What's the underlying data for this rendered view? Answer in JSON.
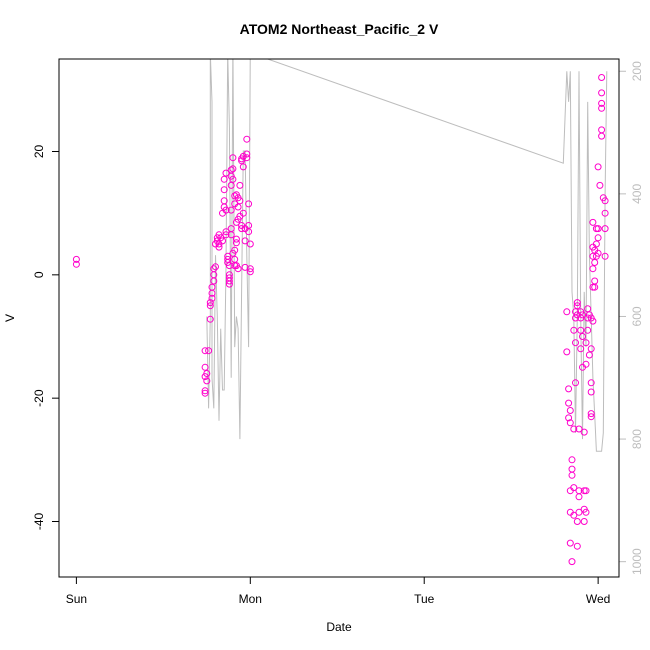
{
  "chart_data": {
    "type": "scatter",
    "title": "ATOM2 Northeast_Pacific_2 V",
    "xlabel": "Date",
    "ylabel": "V",
    "x_ticks": [
      "Sun",
      "Mon",
      "Tue",
      "Wed"
    ],
    "y_ticks": [
      -40,
      -20,
      0,
      20
    ],
    "y2_ticks": [
      200,
      400,
      600,
      800,
      1000
    ],
    "xlim_days": [
      -0.1,
      3.12
    ],
    "ylim": [
      -49,
      35
    ],
    "y2lim": [
      1025,
      180
    ],
    "grid": false,
    "legend": "none",
    "colors": {
      "points": "#ff00cc",
      "line": "#bdbdbd",
      "right_axis": "#bdbdbd",
      "frame": "#000000"
    },
    "series": [
      {
        "kind": "points",
        "axis": "left",
        "points": [
          [
            0.0,
            2.5
          ],
          [
            0.0,
            1.7
          ],
          [
            0.74,
            -12.3
          ],
          [
            0.74,
            -15.0
          ],
          [
            0.74,
            -16.5
          ],
          [
            0.74,
            -18.8
          ],
          [
            0.74,
            -19.2
          ],
          [
            0.75,
            -16.0
          ],
          [
            0.75,
            -17.2
          ],
          [
            0.76,
            -12.3
          ],
          [
            0.77,
            -7.2
          ],
          [
            0.77,
            -5.0
          ],
          [
            0.77,
            -4.5
          ],
          [
            0.78,
            -3.8
          ],
          [
            0.78,
            -3.0
          ],
          [
            0.78,
            -2.0
          ],
          [
            0.79,
            -1.0
          ],
          [
            0.79,
            0.0
          ],
          [
            0.79,
            1.0
          ],
          [
            0.8,
            1.3
          ],
          [
            0.8,
            5.0
          ],
          [
            0.81,
            6.0
          ],
          [
            0.81,
            5.5
          ],
          [
            0.82,
            5.0
          ],
          [
            0.82,
            4.5
          ],
          [
            0.82,
            6.5
          ],
          [
            0.83,
            6.0
          ],
          [
            0.84,
            5.5
          ],
          [
            0.84,
            10.0
          ],
          [
            0.85,
            11.0
          ],
          [
            0.85,
            12.0
          ],
          [
            0.85,
            13.8
          ],
          [
            0.85,
            15.5
          ],
          [
            0.86,
            16.5
          ],
          [
            0.86,
            10.5
          ],
          [
            0.86,
            7.0
          ],
          [
            0.86,
            6.5
          ],
          [
            0.87,
            3.0
          ],
          [
            0.87,
            2.5
          ],
          [
            0.87,
            2.0
          ],
          [
            0.88,
            1.5
          ],
          [
            0.88,
            0.0
          ],
          [
            0.88,
            -0.5
          ],
          [
            0.88,
            -1.0
          ],
          [
            0.88,
            -1.5
          ],
          [
            0.89,
            7.5
          ],
          [
            0.89,
            6.5
          ],
          [
            0.89,
            10.5
          ],
          [
            0.89,
            14.5
          ],
          [
            0.89,
            16.0
          ],
          [
            0.89,
            17.0
          ],
          [
            0.9,
            17.2
          ],
          [
            0.9,
            19.0
          ],
          [
            0.9,
            15.5
          ],
          [
            0.9,
            3.5
          ],
          [
            0.91,
            2.5
          ],
          [
            0.91,
            1.5
          ],
          [
            0.91,
            4.0
          ],
          [
            0.91,
            11.5
          ],
          [
            0.91,
            12.8
          ],
          [
            0.92,
            13.0
          ],
          [
            0.92,
            8.5
          ],
          [
            0.92,
            5.8
          ],
          [
            0.92,
            5.2
          ],
          [
            0.92,
            1.5
          ],
          [
            0.93,
            1.0
          ],
          [
            0.93,
            9.0
          ],
          [
            0.93,
            11.0
          ],
          [
            0.93,
            12.5
          ],
          [
            0.94,
            14.5
          ],
          [
            0.94,
            12.0
          ],
          [
            0.94,
            9.5
          ],
          [
            0.95,
            7.5
          ],
          [
            0.95,
            8.0
          ],
          [
            0.95,
            18.5
          ],
          [
            0.95,
            18.8
          ],
          [
            0.96,
            19.2
          ],
          [
            0.96,
            17.5
          ],
          [
            0.96,
            10.0
          ],
          [
            0.97,
            7.5
          ],
          [
            0.97,
            5.5
          ],
          [
            0.97,
            1.2
          ],
          [
            0.98,
            22.0
          ],
          [
            0.98,
            19.6
          ],
          [
            0.98,
            19.0
          ],
          [
            0.99,
            11.5
          ],
          [
            0.99,
            8.0
          ],
          [
            0.99,
            7.0
          ],
          [
            1.0,
            5.0
          ],
          [
            1.0,
            1.0
          ],
          [
            1.0,
            0.5
          ],
          [
            2.82,
            -6.0
          ],
          [
            2.82,
            -12.5
          ],
          [
            2.83,
            -18.5
          ],
          [
            2.83,
            -20.8
          ],
          [
            2.83,
            -23.2
          ],
          [
            2.84,
            -24.0
          ],
          [
            2.84,
            -22.0
          ],
          [
            2.85,
            -30.0
          ],
          [
            2.85,
            -31.5
          ],
          [
            2.85,
            -32.5
          ],
          [
            2.84,
            -35.0
          ],
          [
            2.84,
            -38.5
          ],
          [
            2.84,
            -43.5
          ],
          [
            2.85,
            -46.5
          ],
          [
            2.86,
            -39.0
          ],
          [
            2.86,
            -34.5
          ],
          [
            2.86,
            -25.0
          ],
          [
            2.87,
            -17.5
          ],
          [
            2.87,
            -11.0
          ],
          [
            2.86,
            -9.0
          ],
          [
            2.87,
            -7.0
          ],
          [
            2.87,
            -6.0
          ],
          [
            2.88,
            -5.0
          ],
          [
            2.88,
            -4.5
          ],
          [
            2.88,
            -6.5
          ],
          [
            2.88,
            -44.0
          ],
          [
            2.88,
            -40.0
          ],
          [
            2.89,
            -38.5
          ],
          [
            2.89,
            -36.0
          ],
          [
            2.89,
            -35.0
          ],
          [
            2.89,
            -25.0
          ],
          [
            2.9,
            -12.0
          ],
          [
            2.9,
            -9.0
          ],
          [
            2.9,
            -7.0
          ],
          [
            2.9,
            -6.0
          ],
          [
            2.91,
            -6.5
          ],
          [
            2.91,
            -10.0
          ],
          [
            2.91,
            -15.0
          ],
          [
            2.92,
            -25.5
          ],
          [
            2.92,
            -35.0
          ],
          [
            2.92,
            -38.0
          ],
          [
            2.92,
            -40.0
          ],
          [
            2.93,
            -38.5
          ],
          [
            2.93,
            -35.0
          ],
          [
            2.93,
            -14.5
          ],
          [
            2.93,
            -11.0
          ],
          [
            2.94,
            -9.0
          ],
          [
            2.94,
            -7.0
          ],
          [
            2.94,
            -5.5
          ],
          [
            2.95,
            -6.5
          ],
          [
            2.95,
            -13.0
          ],
          [
            2.96,
            -12.0
          ],
          [
            2.96,
            -7.0
          ],
          [
            2.96,
            -23.0
          ],
          [
            2.96,
            -22.5
          ],
          [
            2.96,
            -19.0
          ],
          [
            2.96,
            -17.5
          ],
          [
            2.97,
            -7.5
          ],
          [
            2.97,
            -2.0
          ],
          [
            2.97,
            1.0
          ],
          [
            2.97,
            3.0
          ],
          [
            2.97,
            4.5
          ],
          [
            2.97,
            8.5
          ],
          [
            2.98,
            4.0
          ],
          [
            2.98,
            2.0
          ],
          [
            2.98,
            -1.0
          ],
          [
            2.98,
            -2.0
          ],
          [
            2.99,
            3.0
          ],
          [
            2.99,
            7.5
          ],
          [
            2.99,
            5.0
          ],
          [
            3.0,
            3.5
          ],
          [
            3.0,
            6.0
          ],
          [
            3.0,
            7.5
          ],
          [
            3.0,
            17.5
          ],
          [
            3.01,
            14.5
          ],
          [
            3.02,
            32.0
          ],
          [
            3.02,
            29.5
          ],
          [
            3.02,
            27.8
          ],
          [
            3.02,
            27.0
          ],
          [
            3.02,
            23.5
          ],
          [
            3.02,
            22.5
          ],
          [
            3.03,
            12.5
          ],
          [
            3.04,
            12.0
          ],
          [
            3.04,
            10.0
          ],
          [
            3.04,
            7.5
          ],
          [
            3.04,
            3.0
          ]
        ]
      },
      {
        "kind": "line",
        "axis": "right",
        "points": [
          [
            0.75,
            600
          ],
          [
            0.76,
            750
          ],
          [
            0.77,
            600
          ],
          [
            0.77,
            170
          ],
          [
            0.78,
            250
          ],
          [
            0.78,
            700
          ],
          [
            0.79,
            750
          ],
          [
            0.8,
            500
          ],
          [
            0.81,
            600
          ],
          [
            0.82,
            770
          ],
          [
            0.83,
            620
          ],
          [
            0.84,
            720
          ],
          [
            0.85,
            720
          ],
          [
            0.86,
            520
          ],
          [
            0.87,
            170
          ],
          [
            0.88,
            290
          ],
          [
            0.89,
            700
          ],
          [
            0.9,
            150
          ],
          [
            0.91,
            650
          ],
          [
            0.92,
            600
          ],
          [
            0.93,
            620
          ],
          [
            0.94,
            800
          ],
          [
            0.95,
            560
          ],
          [
            0.96,
            330
          ],
          [
            0.97,
            330
          ],
          [
            0.98,
            500
          ],
          [
            0.99,
            650
          ],
          [
            1.0,
            160
          ],
          [
            1.0,
            170
          ],
          [
            2.8,
            350
          ],
          [
            2.82,
            200
          ],
          [
            2.83,
            250
          ],
          [
            2.84,
            200
          ],
          [
            2.85,
            560
          ],
          [
            2.86,
            600
          ],
          [
            2.87,
            790
          ],
          [
            2.88,
            600
          ],
          [
            2.89,
            200
          ],
          [
            2.9,
            600
          ],
          [
            2.91,
            800
          ],
          [
            2.92,
            560
          ],
          [
            2.93,
            650
          ],
          [
            2.94,
            250
          ],
          [
            2.95,
            500
          ],
          [
            2.96,
            600
          ],
          [
            2.97,
            700
          ],
          [
            2.98,
            760
          ],
          [
            2.99,
            820
          ],
          [
            3.0,
            820
          ],
          [
            3.01,
            820
          ],
          [
            3.02,
            820
          ],
          [
            3.03,
            790
          ],
          [
            3.04,
            400
          ],
          [
            3.05,
            200
          ]
        ]
      }
    ]
  }
}
